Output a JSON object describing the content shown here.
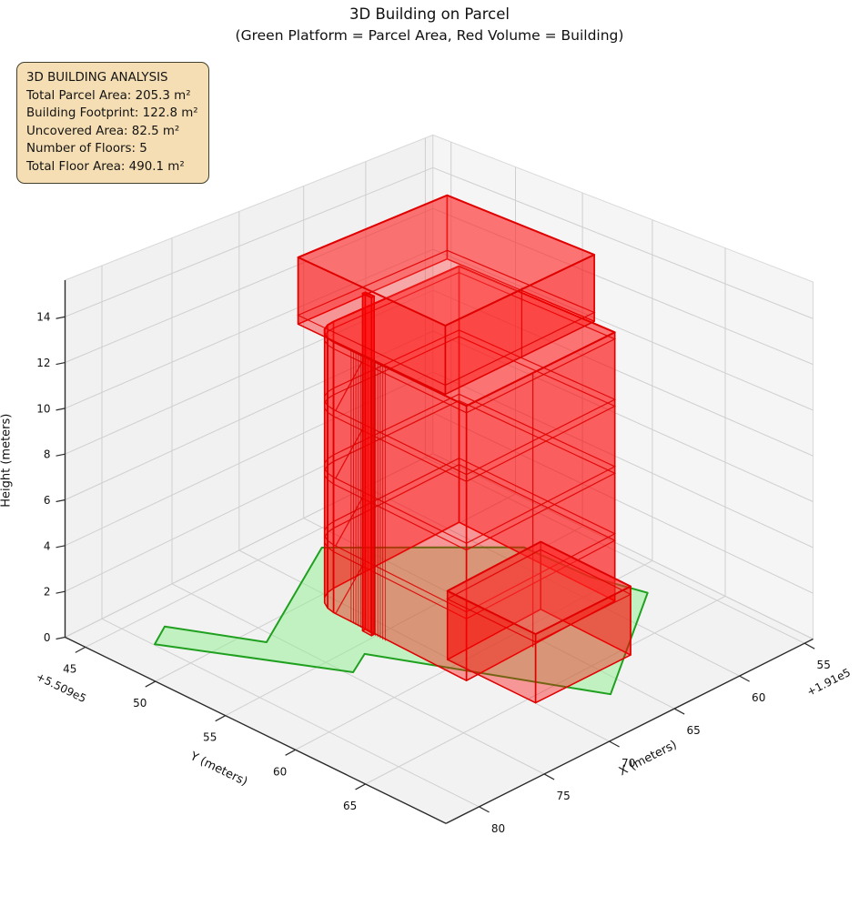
{
  "title": {
    "line1": "3D Building on Parcel",
    "line2": "(Green Platform = Parcel Area, Red Volume = Building)"
  },
  "info_box": {
    "lines": [
      "3D BUILDING ANALYSIS",
      "Total Parcel Area: 205.3 m²",
      "Building Footprint: 122.8 m²",
      "Uncovered Area: 82.5 m²",
      "Number of Floors: 5",
      "Total Floor Area: 490.1 m²"
    ]
  },
  "colors": {
    "pane_left": "#f1f1f1",
    "pane_right": "#f5f5f5",
    "pane_floor": "#f2f2f2",
    "pane_edge": "#d8d8d8",
    "grid": "#cfcfcf",
    "spine": "#2b2b2b",
    "tick_text": "#111111",
    "building_edge": "#e00000",
    "building_wall": "rgba(255,0,0,0.38)",
    "building_top": "rgba(255,60,60,0.40)",
    "building_stripe": "rgba(204,0,0,0.70)",
    "parcel_fill": "rgba(144,238,144,0.50)",
    "parcel_edge": "#1fa01f",
    "infobox_bg": "#f5deb3"
  },
  "chart_data": {
    "type": "3d-building-plot",
    "title": "3D Building on Parcel",
    "subtitle": "(Green Platform = Parcel Area, Red Volume = Building)",
    "legend_meaning": {
      "green_platform": "Parcel Area",
      "red_volume": "Building"
    },
    "axes": {
      "x": {
        "label": "X (meters)",
        "ticks": [
          55,
          60,
          65,
          70,
          75,
          80
        ],
        "offset_text": "+1.91e5",
        "range": [
          54.35,
          82.55
        ]
      },
      "y": {
        "label": "Y (meters)",
        "ticks": [
          45,
          50,
          55,
          60,
          65
        ],
        "offset_text": "+5.509e5",
        "range": [
          43.55,
          70.75
        ]
      },
      "z": {
        "label": "Height (meters)",
        "ticks": [
          0,
          2,
          4,
          6,
          8,
          10,
          12,
          14
        ],
        "range": [
          0,
          15.6
        ]
      }
    },
    "parcel": {
      "z": 0,
      "polygon_xy": [
        [
          78.1,
          46.4
        ],
        [
          75.3,
          51.2
        ],
        [
          66.5,
          46.5
        ],
        [
          58.4,
          54.2
        ],
        [
          58.1,
          58.7
        ],
        [
          57.1,
          61.9
        ],
        [
          66.3,
          67.4
        ],
        [
          72.5,
          55.6
        ],
        [
          74.35,
          56.5
        ],
        [
          79.7,
          47.3
        ]
      ]
    },
    "building": {
      "floor_height_m": 3,
      "num_floors": 5,
      "parts": [
        {
          "name": "main-mass",
          "footprint": [
            [
              59,
              49.9
            ],
            [
              69,
              49.9
            ],
            [
              69.53,
              49.98
            ],
            [
              70.0,
              50.22
            ],
            [
              70.38,
              50.6
            ],
            [
              70.62,
              51.07
            ],
            [
              70.7,
              51.6
            ],
            [
              70.7,
              61.2
            ],
            [
              59,
              61.2
            ]
          ],
          "z": [
            0,
            12
          ],
          "slabs": [
            2.7,
            3,
            5.7,
            6,
            8.7,
            9,
            11.7
          ],
          "stripes": {
            "x": 70.7,
            "y_from": 52.9,
            "y_to": 55.4,
            "n": 15
          },
          "extra_edges": [
            [
              [
                65.6,
                61.2,
                0
              ],
              [
                65.6,
                61.2,
                12
              ]
            ],
            [
              [
                70.7,
                51.75,
                0
              ],
              [
                70.7,
                53.85,
                2.9
              ]
            ],
            [
              [
                70.7,
                51.75,
                3
              ],
              [
                70.7,
                53.85,
                5.9
              ]
            ],
            [
              [
                70.7,
                51.75,
                6
              ],
              [
                70.7,
                53.85,
                8.9
              ]
            ],
            [
              [
                70.7,
                51.75,
                9
              ],
              [
                70.7,
                53.85,
                11.9
              ]
            ]
          ]
        },
        {
          "name": "slot-wall",
          "footprint": [
            [
              70.65,
              53.9
            ],
            [
              70.85,
              53.9
            ],
            [
              70.85,
              54.55
            ],
            [
              70.65,
              54.55
            ]
          ],
          "z": [
            0,
            14.8
          ],
          "slabs": [],
          "extra_edges": []
        },
        {
          "name": "top-floor",
          "footprint": [
            [
              58.8,
              48.8
            ],
            [
              70.6,
              48.8
            ],
            [
              70.6,
              59.6
            ],
            [
              58.8,
              59.6
            ]
          ],
          "z": [
            12,
            15
          ],
          "slabs": [
            12.4
          ],
          "extra_edges": [
            [
              [
                64.7,
                59.6,
                12
              ],
              [
                64.7,
                59.6,
                15
              ]
            ]
          ]
        },
        {
          "name": "front-annex",
          "footprint": [
            [
              62.5,
              59.0
            ],
            [
              69.8,
              59.0
            ],
            [
              69.8,
              65.3
            ],
            [
              62.5,
              65.3
            ]
          ],
          "z": [
            0,
            3
          ],
          "slabs": [
            2.65
          ],
          "extra_edges": []
        }
      ]
    },
    "analysis": {
      "total_parcel_area_m2": 205.3,
      "building_footprint_m2": 122.8,
      "uncovered_area_m2": 82.5,
      "number_of_floors": 5,
      "total_floor_area_m2": 490.1
    }
  }
}
